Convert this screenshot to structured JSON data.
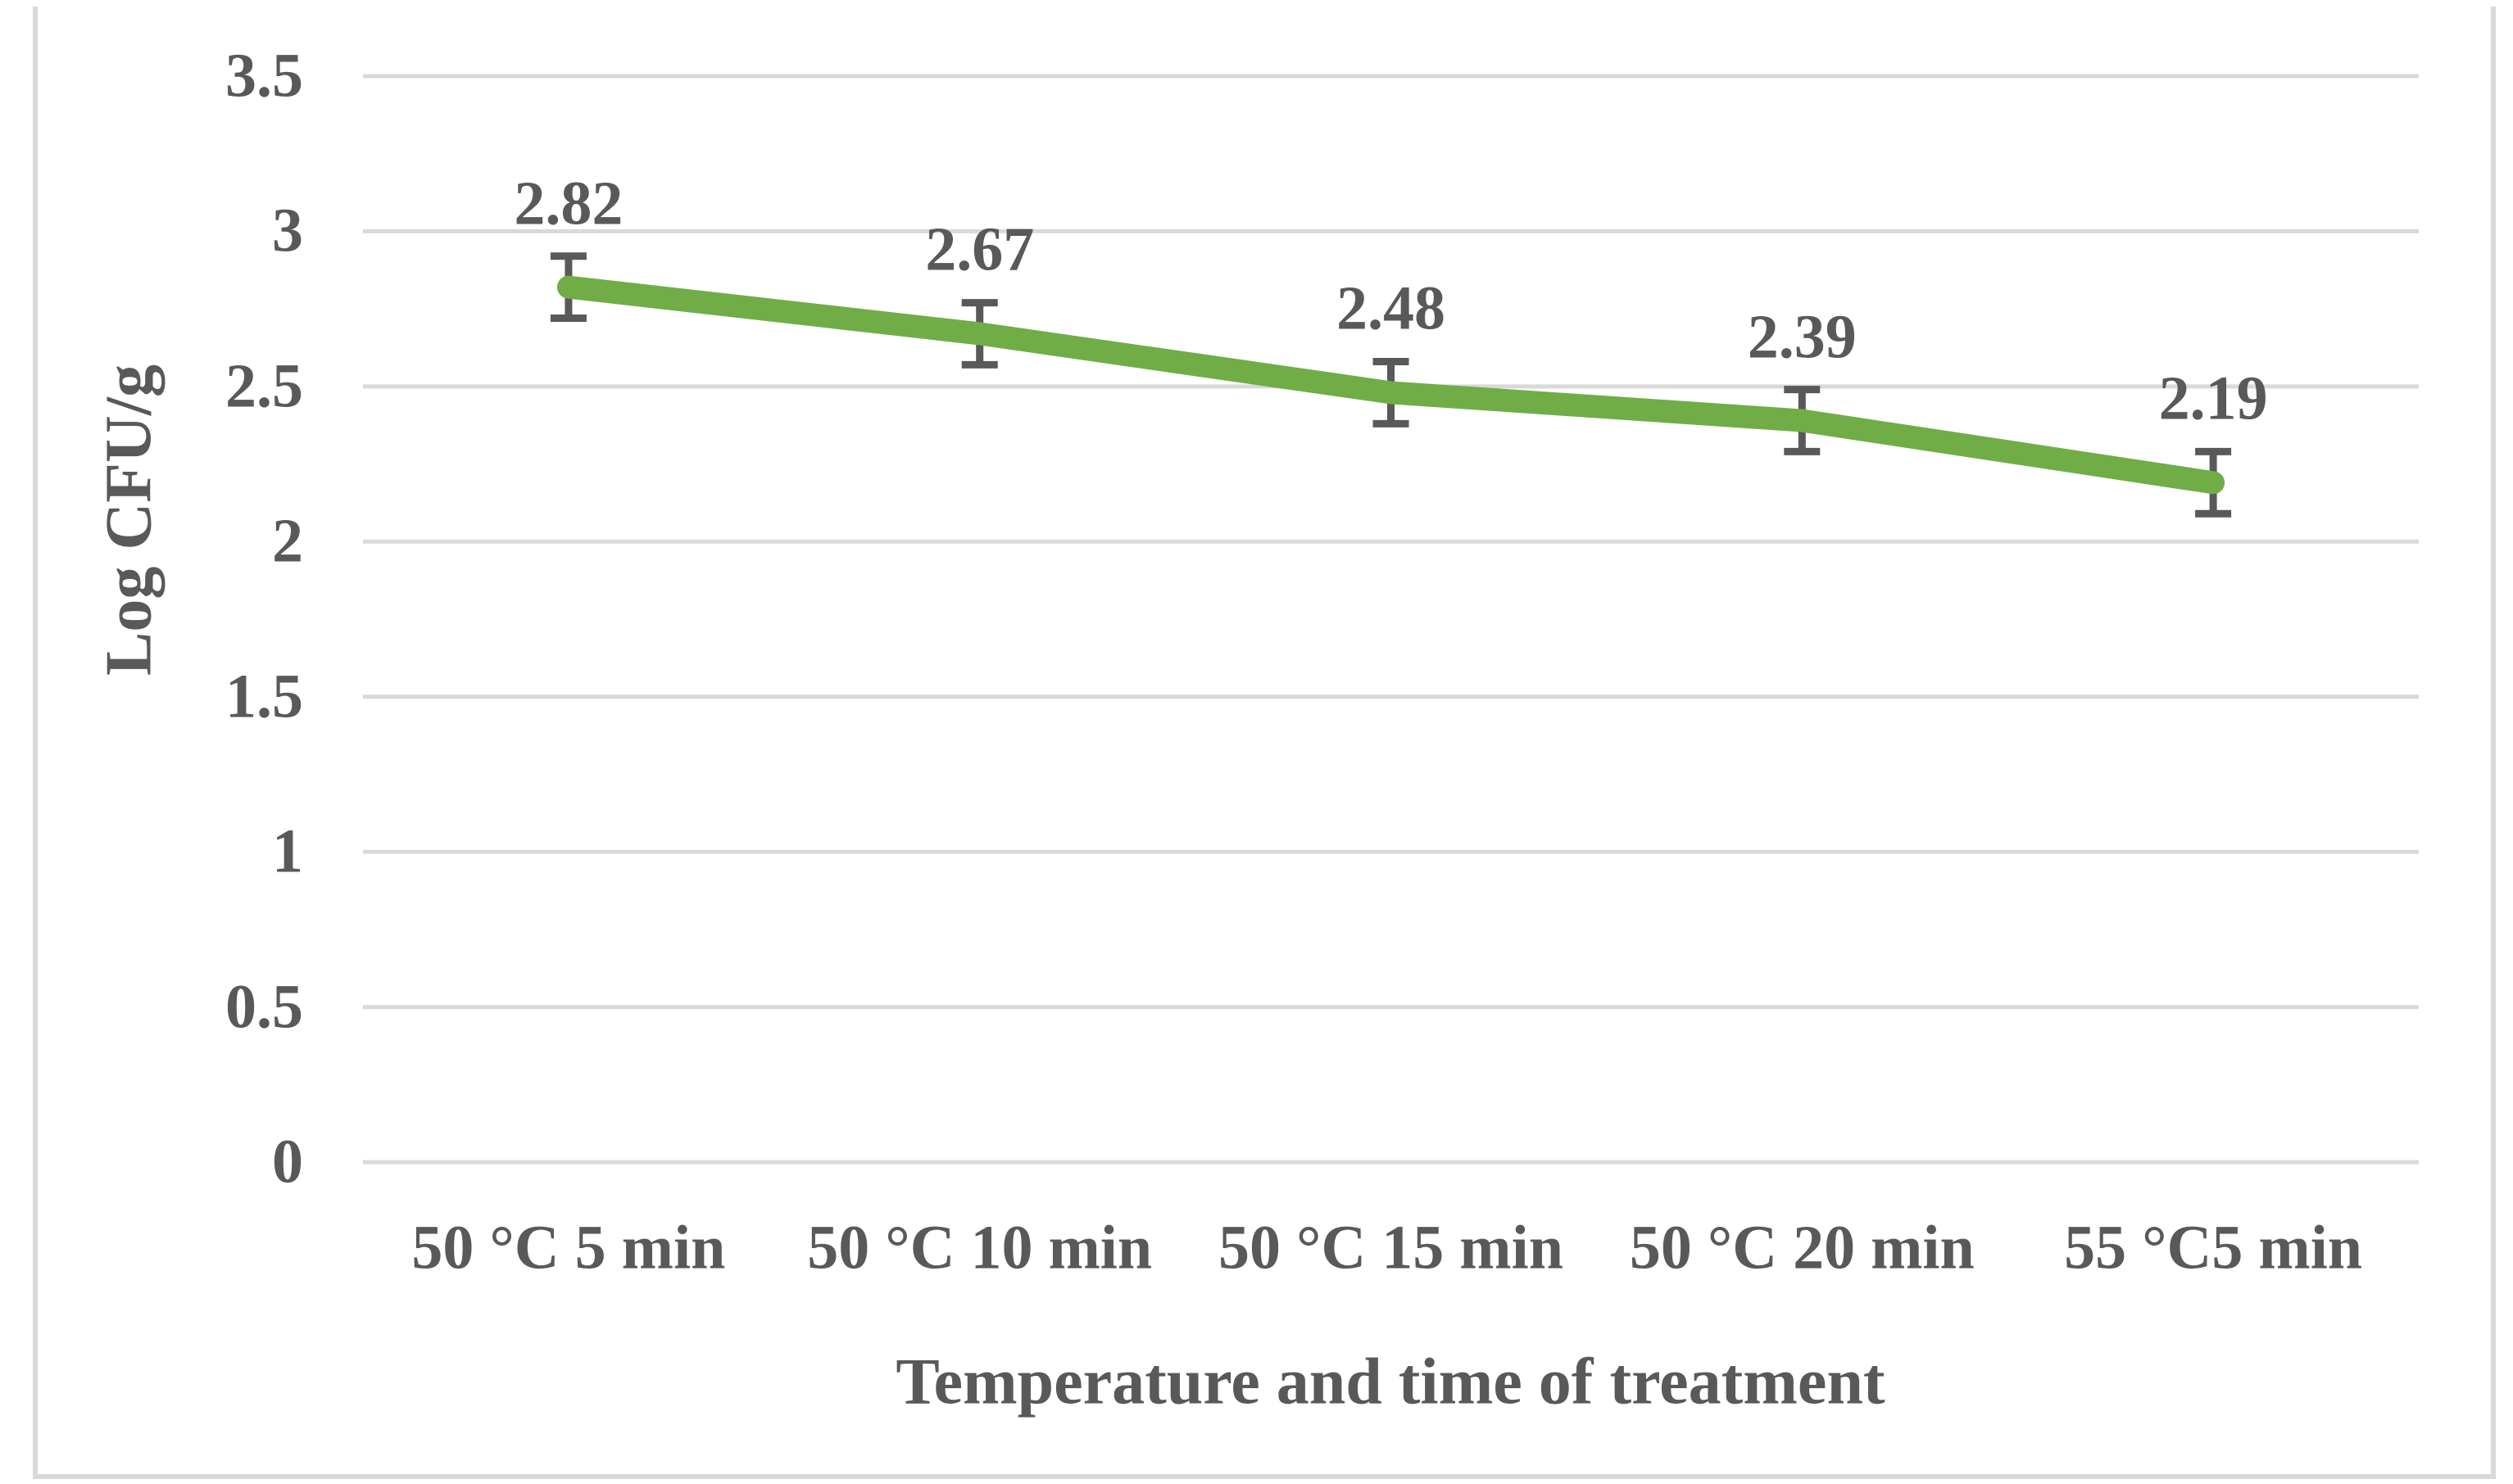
{
  "figure": {
    "background_color": "#ffffff",
    "border_color": "#d9d9d9"
  },
  "chart_data": {
    "type": "line",
    "title": "",
    "categories": [
      "50 °C 5 min",
      "50 °C 10 min",
      "50 °C 15 min",
      "50 °C 20 min",
      "55 °C5 min"
    ],
    "series": [
      {
        "name": "Log CFU/g",
        "values": [
          2.82,
          2.67,
          2.48,
          2.39,
          2.19
        ],
        "error_bars_plus": [
          0.1,
          0.1,
          0.1,
          0.1,
          0.1
        ],
        "error_bars_minus": [
          0.1,
          0.1,
          0.1,
          0.1,
          0.1
        ],
        "color": "#70ad47"
      }
    ],
    "data_labels": [
      "2.82",
      "2.67",
      "2.48",
      "2.39",
      "2.19"
    ],
    "xlabel": "Temperature and time of treatment",
    "ylabel": "Log CFU/g",
    "ylim": [
      0,
      3.5
    ],
    "y_ticks": [
      "3.5",
      "3",
      "2.5",
      "2",
      "1.5",
      "1",
      "0.5",
      "0"
    ],
    "y_tick_values": [
      3.5,
      3,
      2.5,
      2,
      1.5,
      1,
      0.5,
      0
    ],
    "grid": "horizontal",
    "legend": "none",
    "gridline_color": "#d9d9d9",
    "error_bar_color": "#595959",
    "text_color": "#595959",
    "line_color": "#70ad47"
  }
}
